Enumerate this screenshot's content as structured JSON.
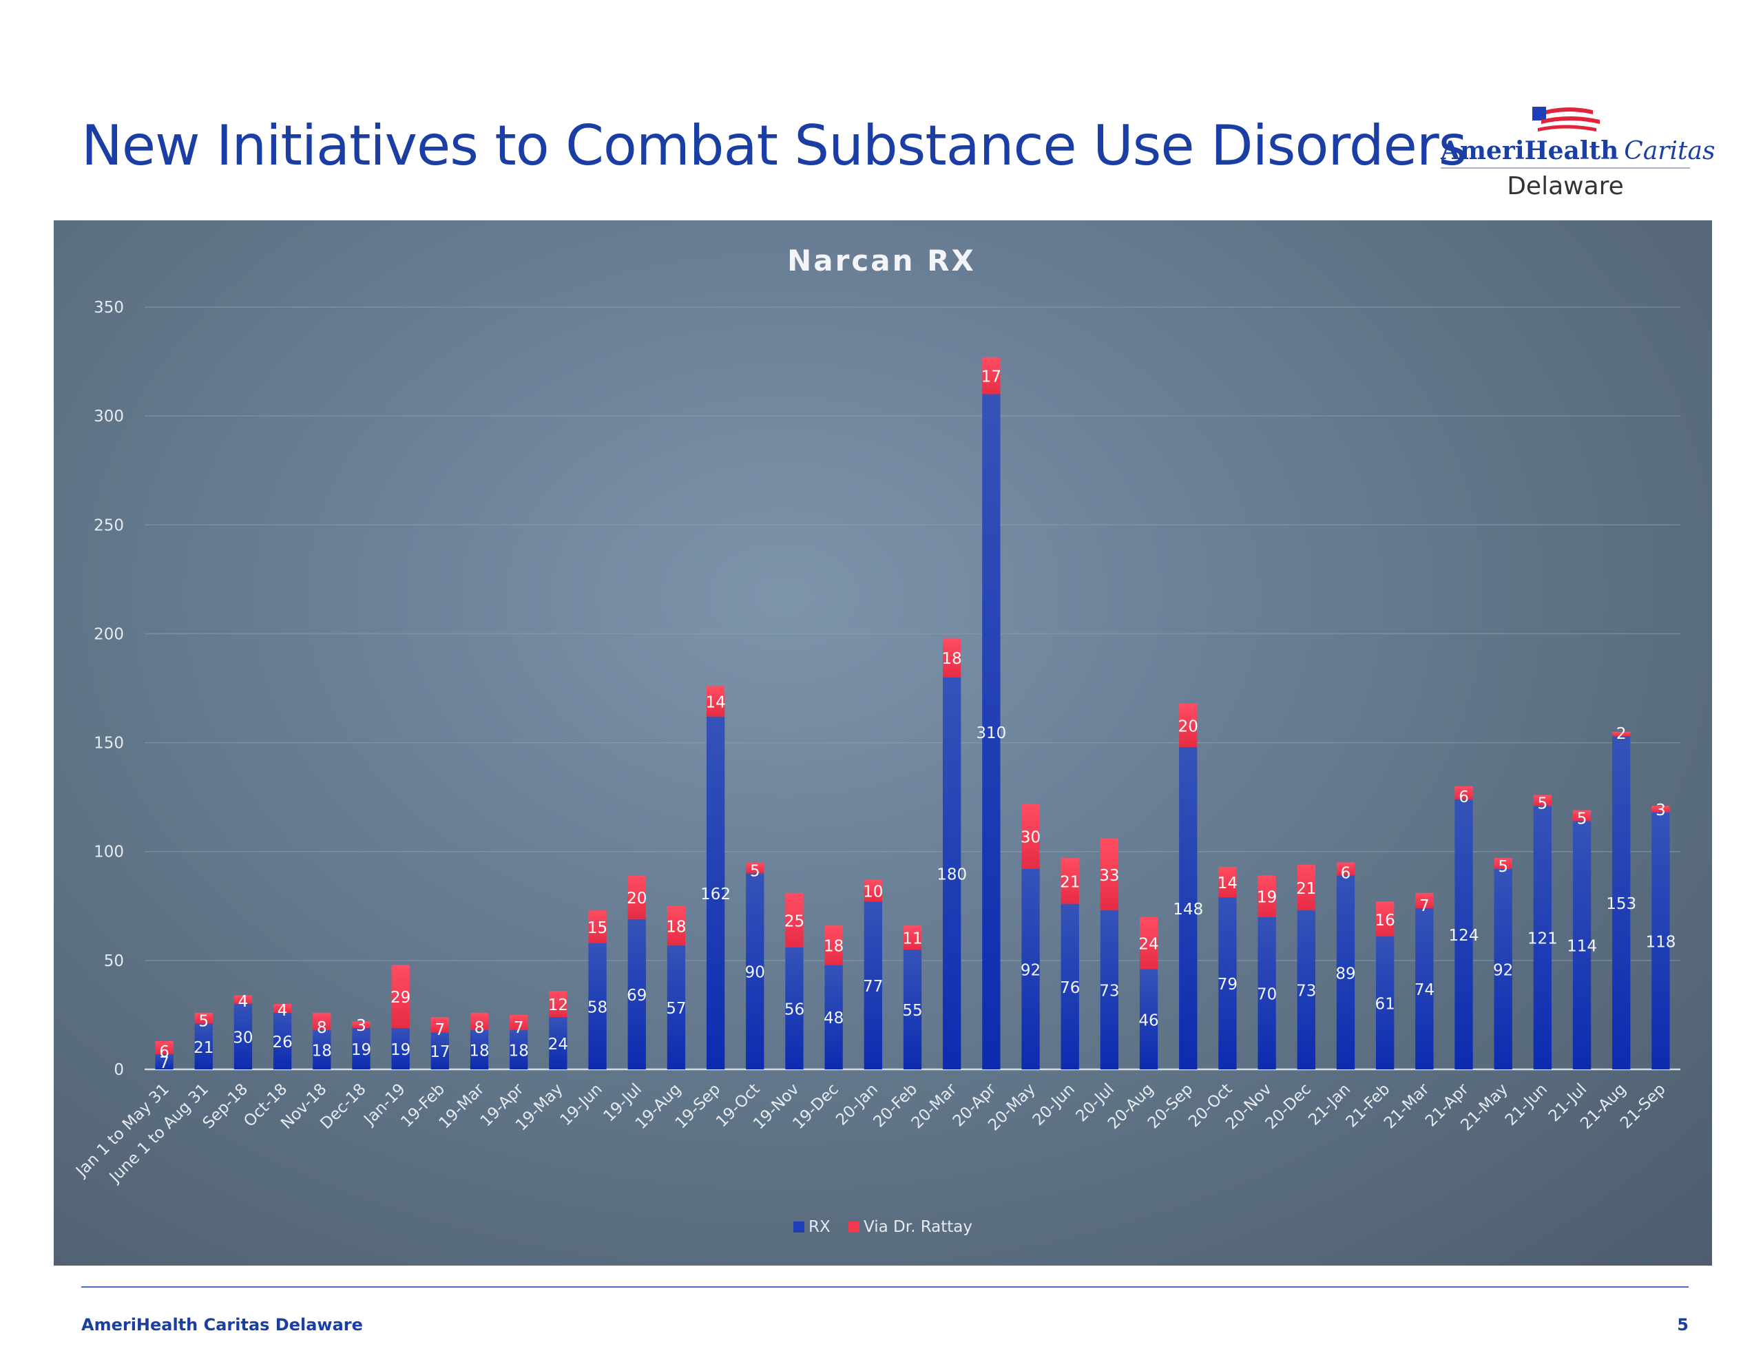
{
  "slide": {
    "title": "New Initiatives to Combat Substance Use Disorders",
    "footer_org": "AmeriHealth Caritas Delaware",
    "page_number": "5"
  },
  "logo": {
    "brand_bold": "AmeriHealth",
    "brand_italic": "Caritas",
    "region": "Delaware"
  },
  "colors": {
    "rx": "#1f3fb8",
    "via": "#f2384f",
    "title_blue": "#1a3ea3"
  },
  "chart_data": {
    "type": "bar",
    "stacked": true,
    "title": "Narcan RX",
    "categories": [
      "Jan 1 to May 31",
      "June 1 to Aug 31",
      "Sep-18",
      "Oct-18",
      "Nov-18",
      "Dec-18",
      "Jan-19",
      "19-Feb",
      "19-Mar",
      "19-Apr",
      "19-May",
      "19-Jun",
      "19-Jul",
      "19-Aug",
      "19-Sep",
      "19-Oct",
      "19-Nov",
      "19-Dec",
      "20-Jan",
      "20-Feb",
      "20-Mar",
      "20-Apr",
      "20-May",
      "20-Jun",
      "20-Jul",
      "20-Aug",
      "20-Sep",
      "20-Oct",
      "20-Nov",
      "20-Dec",
      "21-Jan",
      "21-Feb",
      "21-Mar",
      "21-Apr",
      "21-May",
      "21-Jun",
      "21-Jul",
      "21-Aug",
      "21-Sep"
    ],
    "series": [
      {
        "name": "RX",
        "values": [
          7,
          21,
          30,
          26,
          18,
          19,
          19,
          17,
          18,
          18,
          24,
          58,
          69,
          57,
          162,
          90,
          56,
          48,
          77,
          55,
          180,
          310,
          92,
          76,
          73,
          46,
          148,
          79,
          70,
          73,
          89,
          61,
          74,
          124,
          92,
          121,
          114,
          153,
          118
        ]
      },
      {
        "name": "Via Dr. Rattay",
        "values": [
          6,
          5,
          4,
          4,
          8,
          3,
          29,
          7,
          8,
          7,
          12,
          15,
          20,
          18,
          14,
          5,
          25,
          18,
          10,
          11,
          18,
          17,
          30,
          21,
          33,
          24,
          20,
          14,
          19,
          21,
          6,
          16,
          7,
          6,
          5,
          5,
          5,
          2,
          3
        ]
      }
    ],
    "ylim": [
      0,
      350
    ],
    "yticks": [
      0,
      50,
      100,
      150,
      200,
      250,
      300,
      350
    ],
    "xlabel": "",
    "ylabel": "",
    "grid": true,
    "legend_position": "bottom"
  }
}
